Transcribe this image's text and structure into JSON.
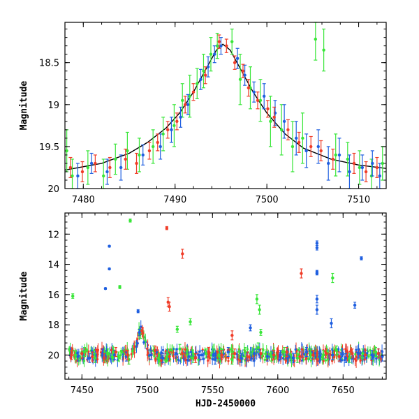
{
  "chart_data": [
    {
      "type": "scatter",
      "xlabel": "",
      "ylabel": "Magnitude",
      "xlim": [
        7478,
        7513
      ],
      "ylim": [
        20.0,
        18.02
      ],
      "y_inverted": true,
      "grid": false,
      "xticks": [
        7480,
        7490,
        7500,
        7510
      ],
      "xtick_labels": [
        "7480",
        "7490",
        "7500",
        "7510"
      ],
      "yticks": [
        18.5,
        19.0,
        19.5,
        20.0
      ],
      "ytick_labels": [
        "18.5",
        "19",
        "19.5",
        "20"
      ],
      "model_curve": {
        "color": "#000000",
        "x": [
          7478,
          7482,
          7485,
          7487,
          7489,
          7490.5,
          7492,
          7493.5,
          7494.5,
          7495.2,
          7496,
          7497,
          7498.5,
          7500,
          7502,
          7504,
          7507,
          7510,
          7513
        ],
        "y": [
          19.78,
          19.7,
          19.58,
          19.45,
          19.28,
          19.1,
          18.85,
          18.55,
          18.35,
          18.28,
          18.35,
          18.55,
          18.85,
          19.1,
          19.35,
          19.52,
          19.65,
          19.72,
          19.76
        ]
      },
      "series": [
        {
          "color": "#39e639",
          "x": [
            7478.2,
            7478.8,
            7480.5,
            7482.2,
            7483.5,
            7484.8,
            7486.1,
            7487.6,
            7488.7,
            7489.9,
            7490.8,
            7491.6,
            7492.4,
            7493.1,
            7493.9,
            7494.6,
            7496.2,
            7497.1,
            7498.2,
            7499.3,
            7500.4,
            7501.6,
            7502.8,
            7503.9,
            7505.3,
            7506.2,
            7507.5,
            7508.8,
            7510.1,
            7511.4,
            7512.6
          ],
          "y": [
            19.55,
            19.85,
            19.75,
            19.85,
            19.65,
            19.55,
            19.6,
            19.5,
            19.35,
            19.25,
            18.95,
            18.9,
            18.75,
            18.6,
            18.4,
            18.3,
            18.25,
            18.7,
            18.8,
            18.95,
            19.2,
            19.3,
            19.5,
            19.4,
            18.22,
            18.35,
            19.6,
            19.65,
            19.75,
            19.85,
            19.7
          ],
          "err": [
            0.25,
            0.2,
            0.2,
            0.2,
            0.18,
            0.22,
            0.2,
            0.2,
            0.2,
            0.25,
            0.2,
            0.25,
            0.18,
            0.2,
            0.2,
            0.15,
            0.15,
            0.3,
            0.25,
            0.25,
            0.3,
            0.3,
            0.3,
            0.3,
            0.25,
            0.25,
            0.25,
            0.2,
            0.2,
            0.2,
            0.2
          ]
        },
        {
          "color": "#1f5fe0",
          "x": [
            7479.4,
            7480.9,
            7482.6,
            7484.1,
            7486.5,
            7488.4,
            7489.6,
            7490.6,
            7491.4,
            7492.8,
            7493.6,
            7494.3,
            7495.0,
            7496.8,
            7497.6,
            7498.6,
            7499.7,
            7500.9,
            7501.9,
            7503.2,
            7504.3,
            7505.6,
            7506.7,
            7507.9,
            7509.0,
            7510.4,
            7511.5,
            7512.3
          ],
          "y": [
            19.85,
            19.7,
            19.8,
            19.75,
            19.6,
            19.5,
            19.3,
            19.15,
            19.0,
            18.7,
            18.55,
            18.4,
            18.3,
            18.45,
            18.65,
            18.85,
            18.9,
            19.1,
            19.2,
            19.4,
            19.55,
            19.5,
            19.7,
            19.6,
            19.8,
            19.75,
            19.7,
            19.85
          ],
          "err": [
            0.15,
            0.12,
            0.15,
            0.15,
            0.12,
            0.15,
            0.15,
            0.12,
            0.12,
            0.12,
            0.12,
            0.1,
            0.1,
            0.12,
            0.12,
            0.12,
            0.15,
            0.15,
            0.2,
            0.2,
            0.2,
            0.2,
            0.2,
            0.2,
            0.2,
            0.15,
            0.15,
            0.15
          ]
        },
        {
          "color": "#f03c28",
          "x": [
            7478.6,
            7479.9,
            7481.3,
            7482.9,
            7484.6,
            7485.8,
            7487.2,
            7488.1,
            7489.2,
            7490.2,
            7491.1,
            7492.0,
            7493.3,
            7494.8,
            7495.6,
            7496.5,
            7497.4,
            7498.0,
            7499.0,
            7500.1,
            7500.8,
            7502.3,
            7503.5,
            7504.8,
            7505.9,
            7507.2,
            7509.5,
            7510.8,
            7512.0
          ],
          "y": [
            19.75,
            19.8,
            19.7,
            19.75,
            19.65,
            19.7,
            19.55,
            19.45,
            19.3,
            19.2,
            19.0,
            18.85,
            18.65,
            18.25,
            18.3,
            18.5,
            18.6,
            18.8,
            18.95,
            19.05,
            19.15,
            19.3,
            19.45,
            19.5,
            19.55,
            19.65,
            19.7,
            19.8,
            19.75
          ],
          "err": [
            0.12,
            0.12,
            0.1,
            0.12,
            0.12,
            0.12,
            0.1,
            0.1,
            0.1,
            0.1,
            0.1,
            0.1,
            0.1,
            0.08,
            0.08,
            0.08,
            0.08,
            0.1,
            0.1,
            0.1,
            0.12,
            0.12,
            0.12,
            0.12,
            0.12,
            0.12,
            0.12,
            0.12,
            0.12
          ]
        }
      ]
    },
    {
      "type": "scatter",
      "xlabel": "HJD-2450000",
      "ylabel": "Magnitude",
      "xlim": [
        7437,
        7683
      ],
      "ylim": [
        21.6,
        10.6
      ],
      "y_inverted": true,
      "grid": false,
      "xticks": [
        7450,
        7500,
        7550,
        7600,
        7650
      ],
      "xtick_labels": [
        "7450",
        "7500",
        "7550",
        "7600",
        "7650"
      ],
      "yticks": [
        12,
        14,
        16,
        18,
        20
      ],
      "ytick_labels": [
        "12",
        "14",
        "16",
        "18",
        "20"
      ],
      "series": [
        {
          "color": "#39e639",
          "x": [
            7445,
            7452,
            7460,
            7470,
            7478,
            7486,
            7495,
            7505,
            7515,
            7525,
            7535,
            7545,
            7555,
            7565,
            7575,
            7585,
            7595,
            7605,
            7615,
            7625,
            7635,
            7645,
            7655,
            7665,
            7675,
            7443,
            7479,
            7487,
            7523,
            7533,
            7584,
            7586,
            7642,
            7587
          ],
          "y": [
            20.0,
            19.8,
            20.2,
            19.9,
            20.1,
            20.3,
            18.6,
            19.7,
            20.1,
            19.6,
            20.2,
            19.9,
            20.0,
            20.3,
            19.8,
            19.5,
            20.1,
            19.8,
            20.2,
            19.9,
            20.0,
            19.7,
            20.2,
            19.9,
            19.8,
            16.1,
            15.5,
            11.1,
            18.3,
            17.8,
            16.3,
            17.0,
            14.9,
            18.5
          ],
          "err": [
            0.3,
            0.3,
            0.3,
            0.3,
            0.3,
            0.3,
            0.3,
            0.3,
            0.3,
            0.3,
            0.3,
            0.3,
            0.3,
            0.3,
            0.3,
            0.3,
            0.3,
            0.3,
            0.3,
            0.3,
            0.3,
            0.3,
            0.3,
            0.3,
            0.3,
            0.15,
            0.1,
            0.1,
            0.2,
            0.2,
            0.3,
            0.3,
            0.3,
            0.2
          ]
        },
        {
          "color": "#1f5fe0",
          "x": [
            7447,
            7456,
            7466,
            7475,
            7484,
            7494,
            7503,
            7512,
            7522,
            7532,
            7542,
            7552,
            7562,
            7572,
            7582,
            7592,
            7602,
            7612,
            7622,
            7632,
            7642,
            7652,
            7662,
            7672,
            7680,
            7468,
            7471,
            7471,
            7493,
            7630,
            7630,
            7630,
            7630,
            7630,
            7630,
            7664,
            7659,
            7641,
            7579
          ],
          "y": [
            20.1,
            20.2,
            19.9,
            20.0,
            20.1,
            18.5,
            20.0,
            20.2,
            19.9,
            20.1,
            20.0,
            20.3,
            19.8,
            20.2,
            19.9,
            20.1,
            20.0,
            20.2,
            19.8,
            20.1,
            20.0,
            20.2,
            19.9,
            20.0,
            20.1,
            15.6,
            12.8,
            14.3,
            17.1,
            12.6,
            12.9,
            14.6,
            14.5,
            16.3,
            17.0,
            13.6,
            16.7,
            17.9,
            18.2
          ],
          "err": [
            0.3,
            0.3,
            0.3,
            0.3,
            0.3,
            0.2,
            0.3,
            0.3,
            0.3,
            0.3,
            0.3,
            0.3,
            0.3,
            0.3,
            0.3,
            0.3,
            0.3,
            0.3,
            0.3,
            0.3,
            0.3,
            0.3,
            0.3,
            0.3,
            0.3,
            0.05,
            0.05,
            0.05,
            0.1,
            0.15,
            0.15,
            0.1,
            0.1,
            0.25,
            0.3,
            0.1,
            0.2,
            0.3,
            0.2
          ]
        },
        {
          "color": "#f03c28",
          "x": [
            7442,
            7450,
            7458,
            7467,
            7476,
            7485,
            7496,
            7506,
            7517,
            7527,
            7537,
            7547,
            7557,
            7567,
            7577,
            7587,
            7597,
            7607,
            7617,
            7627,
            7637,
            7647,
            7657,
            7667,
            7677,
            7515,
            7516,
            7517,
            7527,
            7618,
            7565
          ],
          "y": [
            20.0,
            19.9,
            20.1,
            20.2,
            19.8,
            20.0,
            18.4,
            19.7,
            20.1,
            19.9,
            20.2,
            19.8,
            20.0,
            19.9,
            20.1,
            19.9,
            20.0,
            19.8,
            20.1,
            20.0,
            19.9,
            20.1,
            19.9,
            20.0,
            19.9,
            11.6,
            16.5,
            16.8,
            13.3,
            14.6,
            18.7
          ],
          "err": [
            0.3,
            0.3,
            0.3,
            0.3,
            0.3,
            0.3,
            0.2,
            0.3,
            0.3,
            0.3,
            0.3,
            0.3,
            0.3,
            0.3,
            0.3,
            0.3,
            0.3,
            0.3,
            0.3,
            0.3,
            0.3,
            0.3,
            0.3,
            0.3,
            0.3,
            0.1,
            0.3,
            0.3,
            0.3,
            0.3,
            0.3
          ]
        }
      ]
    }
  ]
}
